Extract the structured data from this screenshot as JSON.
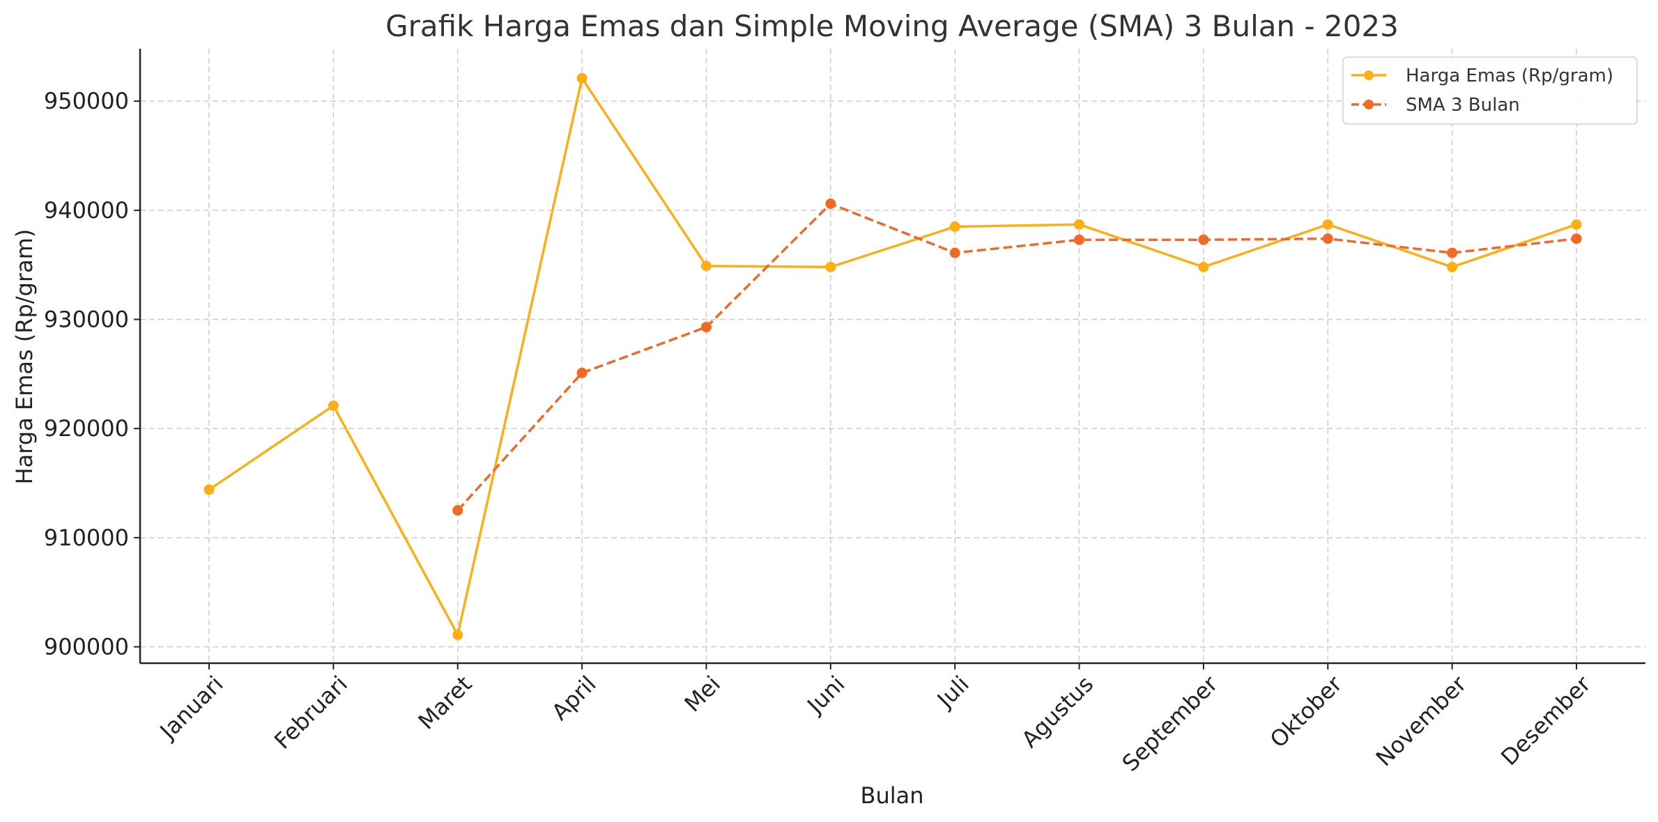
{
  "chart_data": {
    "type": "line",
    "title": "Grafik Harga Emas dan Simple Moving Average (SMA) 3 Bulan - 2023",
    "xlabel": "Bulan",
    "ylabel": "Harga Emas (Rp/gram)",
    "categories": [
      "Januari",
      "Februari",
      "Maret",
      "April",
      "Mei",
      "Juni",
      "Juli",
      "Agustus",
      "September",
      "Oktober",
      "November",
      "Desember"
    ],
    "ylim": [
      898500,
      954800
    ],
    "yticks": [
      900000,
      910000,
      920000,
      930000,
      940000,
      950000
    ],
    "grid": true,
    "legend_position": "top-right",
    "series": [
      {
        "name": "Harga Emas (Rp/gram)",
        "color": "#FDAE15",
        "style": "solid",
        "marker": "circle",
        "values": [
          914400,
          922100,
          901100,
          952100,
          934900,
          934800,
          938500,
          938700,
          934800,
          938700,
          934800,
          938700
        ]
      },
      {
        "name": "SMA 3 Bulan",
        "color": "#F06A25",
        "style": "dashed",
        "marker": "circle",
        "values": [
          null,
          null,
          912500,
          925100,
          929300,
          940600,
          936100,
          937300,
          937300,
          937400,
          936100,
          937400
        ]
      }
    ]
  }
}
